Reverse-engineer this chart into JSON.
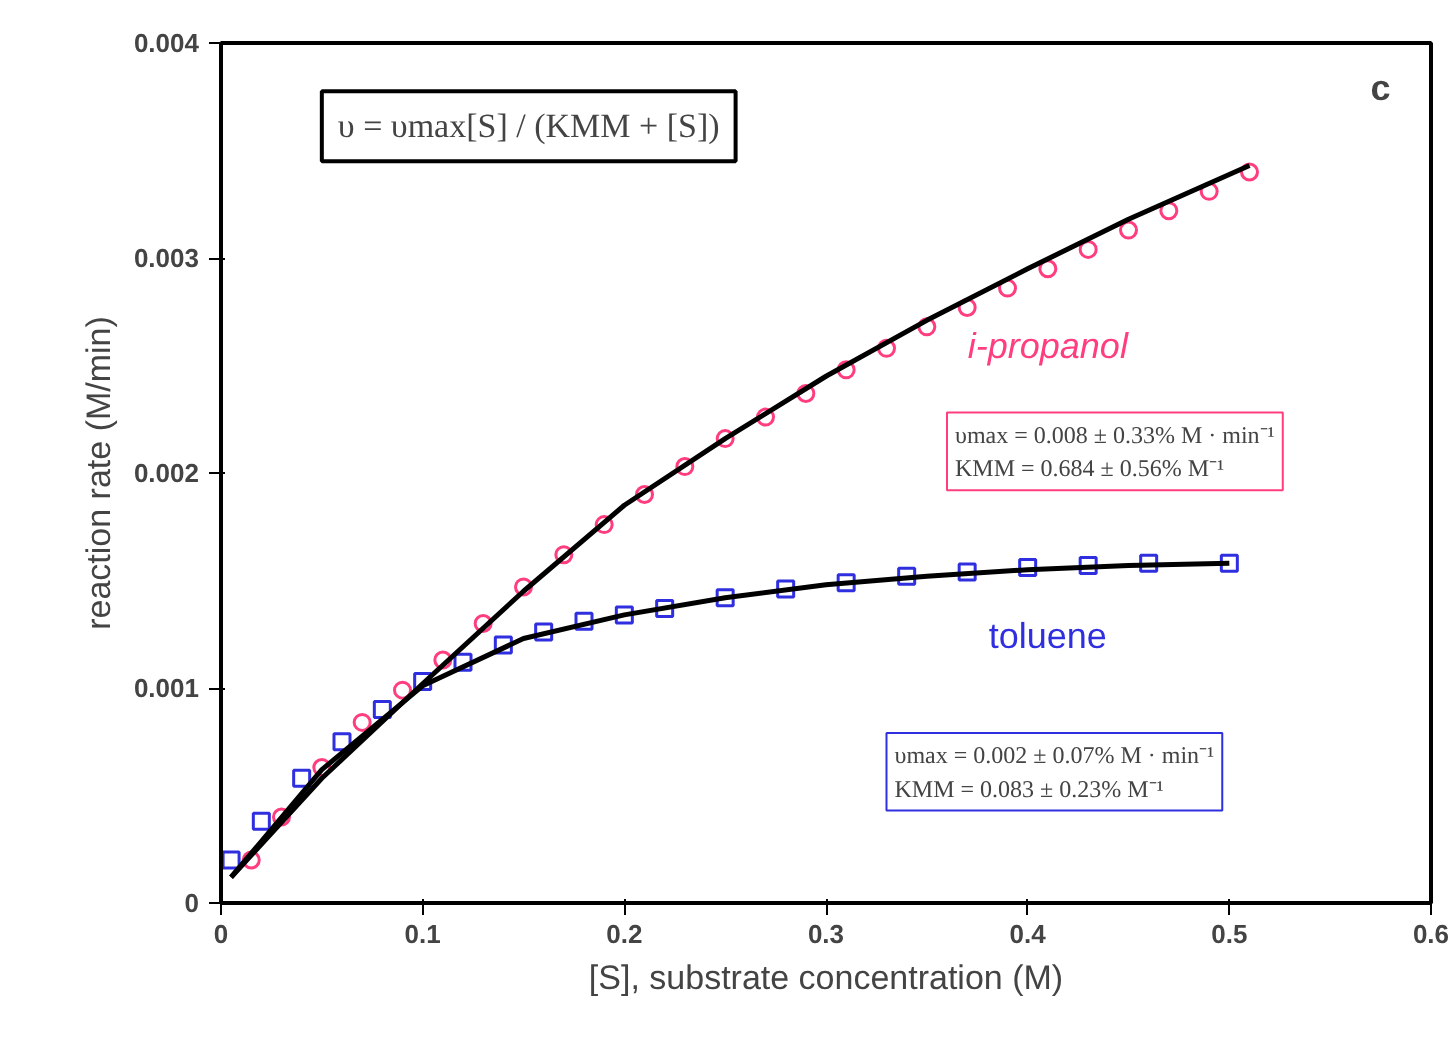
{
  "chart_data": {
    "type": "scatter",
    "xlabel": "[S], substrate concentration (M)",
    "ylabel": "reaction rate (M/min)",
    "xlim": [
      0,
      0.6
    ],
    "ylim": [
      0,
      0.004
    ],
    "xticks": [
      0,
      0.1,
      0.2,
      0.3,
      0.4,
      0.5,
      0.6
    ],
    "yticks": [
      0,
      0.001,
      0.002,
      0.003,
      0.004
    ],
    "grid": false,
    "series": [
      {
        "name": "i-propanol",
        "color": "#ff3d7f",
        "marker": "circle",
        "x": [
          0.015,
          0.03,
          0.05,
          0.07,
          0.09,
          0.11,
          0.13,
          0.15,
          0.17,
          0.19,
          0.21,
          0.23,
          0.25,
          0.27,
          0.29,
          0.31,
          0.33,
          0.35,
          0.37,
          0.39,
          0.41,
          0.43,
          0.45,
          0.47,
          0.49,
          0.51
        ],
        "values": [
          0.0002,
          0.0004,
          0.00063,
          0.00084,
          0.00099,
          0.00113,
          0.0013,
          0.00147,
          0.00162,
          0.00176,
          0.0019,
          0.00203,
          0.00216,
          0.00226,
          0.00237,
          0.00248,
          0.00258,
          0.00268,
          0.00277,
          0.00286,
          0.00295,
          0.00304,
          0.00313,
          0.00322,
          0.00331,
          0.0034
        ]
      },
      {
        "name": "toluene",
        "color": "#2f2fe0",
        "marker": "square",
        "x": [
          0.005,
          0.02,
          0.04,
          0.06,
          0.08,
          0.1,
          0.12,
          0.14,
          0.16,
          0.18,
          0.2,
          0.22,
          0.25,
          0.28,
          0.31,
          0.34,
          0.37,
          0.4,
          0.43,
          0.46,
          0.5
        ],
        "values": [
          0.0002,
          0.00038,
          0.00058,
          0.00075,
          0.0009,
          0.00103,
          0.00112,
          0.0012,
          0.00126,
          0.00131,
          0.00134,
          0.00137,
          0.00142,
          0.00146,
          0.00149,
          0.00152,
          0.00154,
          0.00156,
          0.00157,
          0.00158,
          0.00158
        ]
      },
      {
        "type": "line",
        "color": "#000000",
        "x": [
          0.005,
          0.05,
          0.1,
          0.15,
          0.2,
          0.25,
          0.3,
          0.35,
          0.4,
          0.45,
          0.51
        ],
        "values": [
          0.00012,
          0.00058,
          0.00102,
          0.00145,
          0.00185,
          0.00216,
          0.00245,
          0.00271,
          0.00295,
          0.00318,
          0.00343
        ]
      },
      {
        "type": "line",
        "color": "#000000",
        "x": [
          0.005,
          0.05,
          0.1,
          0.15,
          0.2,
          0.25,
          0.3,
          0.35,
          0.4,
          0.45,
          0.5
        ],
        "values": [
          0.00012,
          0.00062,
          0.00101,
          0.00123,
          0.00134,
          0.00142,
          0.00148,
          0.00152,
          0.00155,
          0.00157,
          0.00158
        ]
      }
    ],
    "annotations": [
      "c",
      "υ = υmax[S] / (KMM + [S])",
      "υmax = 0.008 ± 0.33% M · min⁻¹\nKMM = 0.684 ± 0.56% M⁻¹",
      "υmax = 0.002 ± 0.07% M · min⁻¹\nKMM = 0.083 ± 0.23% M⁻¹"
    ]
  }
}
